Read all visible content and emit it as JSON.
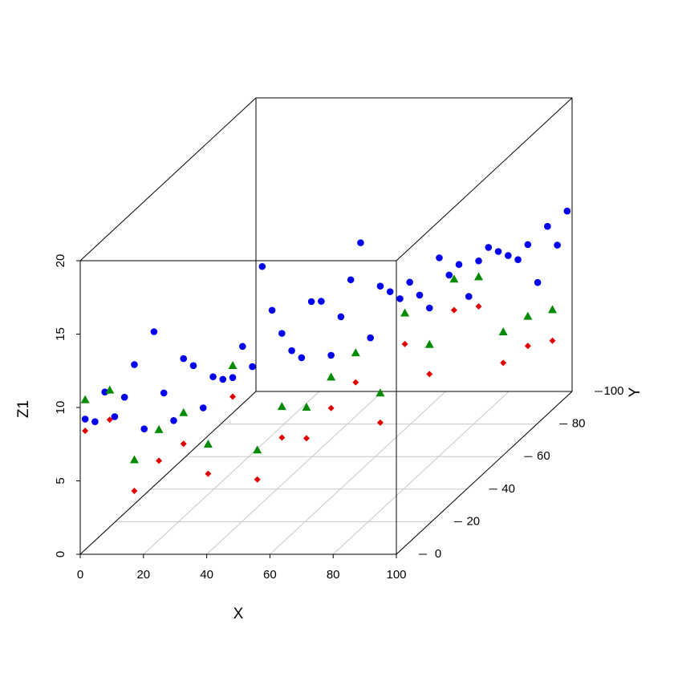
{
  "chart_data": {
    "type": "scatter3d",
    "xlabel": "X",
    "ylabel": "Y",
    "zlabel": "Z1",
    "xlim": [
      0,
      100
    ],
    "ylim": [
      0,
      100
    ],
    "zlim": [
      0,
      20
    ],
    "xticks": [
      0,
      20,
      40,
      60,
      80,
      100
    ],
    "yticks": [
      0,
      20,
      40,
      60,
      80,
      100
    ],
    "zticks": [
      0,
      5,
      10,
      15,
      20
    ],
    "grid": true,
    "series": [
      {
        "color": "#0000ee",
        "marker": "circle",
        "x": [
          1,
          3,
          5,
          7,
          9,
          11,
          13,
          15,
          17,
          19,
          21,
          23,
          25,
          27,
          29,
          31,
          33,
          35,
          37,
          39,
          41,
          43,
          45,
          47,
          49,
          51,
          53,
          55,
          57,
          59,
          61,
          63,
          65,
          67,
          69,
          71,
          73,
          75,
          77,
          79,
          81,
          83,
          85,
          87,
          89,
          91,
          93,
          95,
          97,
          99
        ],
        "y": [
          1,
          3,
          5,
          7,
          9,
          11,
          13,
          15,
          17,
          19,
          21,
          23,
          25,
          27,
          29,
          31,
          33,
          35,
          37,
          39,
          41,
          43,
          45,
          47,
          49,
          51,
          53,
          55,
          57,
          59,
          61,
          63,
          65,
          67,
          69,
          71,
          73,
          75,
          77,
          79,
          81,
          83,
          85,
          87,
          89,
          91,
          93,
          95,
          97,
          99
        ],
        "z": [
          9.1,
          8.7,
          10.5,
          8.6,
          9.7,
          11.7,
          7.1,
          13.5,
          9.1,
          7.0,
          11.0,
          10.3,
          7.2,
          9.1,
          8.7,
          8.6,
          10.5,
          8.9,
          15.5,
          12.3,
          10.5,
          9.1,
          8.4,
          12.0,
          11.8,
          7.9,
          10.3,
          12.6,
          14.9,
          8.2,
          11.5,
          10.9,
          10.2,
          11.1,
          10.0,
          8.9,
          12.1,
          10.7,
          11.2,
          8.8,
          11.0,
          11.7,
          11.2,
          10.7,
          10.2,
          11.0,
          8.2,
          11.8,
          10.3,
          12.4
        ]
      },
      {
        "color": "#008b00",
        "marker": "triangle",
        "x": [
          1,
          6,
          11,
          16,
          21,
          26,
          31,
          36,
          41,
          46,
          51,
          56,
          61,
          66,
          71,
          76,
          81,
          86,
          91,
          96
        ],
        "y": [
          1,
          6,
          11,
          16,
          21,
          26,
          31,
          36,
          41,
          46,
          51,
          56,
          61,
          66,
          71,
          76,
          81,
          86,
          91,
          96
        ],
        "z": [
          10.4,
          10.5,
          5.2,
          6.7,
          7.3,
          4.6,
          9.4,
          3.1,
          5.5,
          4.9,
          6.4,
          7.5,
          4.2,
          9.1,
          6.4,
          10.3,
          9.9,
          5.6,
          6.1,
          6.0
        ]
      },
      {
        "color": "#e00000",
        "marker": "diamond",
        "x": [
          1,
          6,
          11,
          16,
          21,
          26,
          31,
          36,
          41,
          46,
          51,
          56,
          61,
          66,
          71,
          76,
          81,
          86,
          91,
          96
        ],
        "y": [
          1,
          6,
          11,
          16,
          21,
          26,
          31,
          36,
          41,
          46,
          51,
          56,
          61,
          66,
          71,
          76,
          81,
          86,
          91,
          96
        ],
        "z": [
          8.3,
          8.5,
          3.1,
          4.6,
          5.2,
          2.6,
          7.3,
          1.1,
          3.4,
          2.8,
          4.3,
          5.5,
          2.2,
          7.0,
          4.4,
          8.2,
          7.9,
          3.5,
          4.1,
          3.9
        ]
      }
    ]
  }
}
